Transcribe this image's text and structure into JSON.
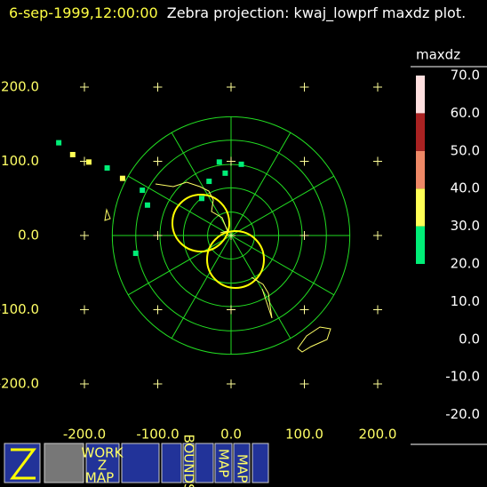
{
  "chart_data": {
    "type": "scatter",
    "timestamp": "6-sep-1999,12:00:00",
    "title": "Zebra projection: kwaj_lowprf maxdz plot.",
    "xlim": [
      -200,
      200
    ],
    "ylim": [
      -200,
      200
    ],
    "xticks": [
      {
        "value": -200,
        "label": "-200.0"
      },
      {
        "value": -100,
        "label": "-100.0"
      },
      {
        "value": 0,
        "label": "0.0"
      },
      {
        "value": 100,
        "label": "100.0"
      },
      {
        "value": 200,
        "label": "200.0"
      }
    ],
    "yticks": [
      {
        "value": 200,
        "label": "200.0"
      },
      {
        "value": 100,
        "label": "100.0"
      },
      {
        "value": 0,
        "label": "0.0"
      },
      {
        "value": -100,
        "label": "-100.0"
      },
      {
        "value": -200,
        "label": "-200.0"
      }
    ],
    "range_rings": [
      32,
      65,
      97,
      130,
      162
    ],
    "x": [
      -235,
      -216,
      -194,
      -169,
      -148,
      -121,
      -114,
      -130,
      -30,
      -16,
      14,
      -40,
      -8
    ],
    "values": [
      125,
      109,
      99,
      91,
      77,
      61,
      41,
      -24,
      73,
      99,
      96,
      50,
      84
    ],
    "dbz": [
      25,
      35,
      35,
      25,
      35,
      25,
      25,
      25,
      25,
      25,
      25,
      25,
      25
    ],
    "colorbar": {
      "title": "maxdz",
      "bins": [
        20,
        30,
        40,
        50,
        60,
        70
      ],
      "colors": [
        "#00ee77",
        "#ffff55",
        "#ee8866",
        "#aa2222",
        "#ffe0e0"
      ],
      "ticks": [
        {
          "value": 70,
          "label": "70.0"
        },
        {
          "value": 60,
          "label": "60.0"
        },
        {
          "value": 50,
          "label": "50.0"
        },
        {
          "value": 40,
          "label": "40.0"
        },
        {
          "value": 30,
          "label": "30.0"
        },
        {
          "value": 20,
          "label": "20.0"
        },
        {
          "value": 10,
          "label": "10.0"
        },
        {
          "value": 0,
          "label": "0.0"
        },
        {
          "value": -10,
          "label": "-10.0"
        },
        {
          "value": -20,
          "label": "-20.0"
        }
      ]
    },
    "icon_labels": [
      "WORK",
      "Z",
      "MAP",
      "BOUNDS",
      "MAP",
      "MAP"
    ]
  }
}
